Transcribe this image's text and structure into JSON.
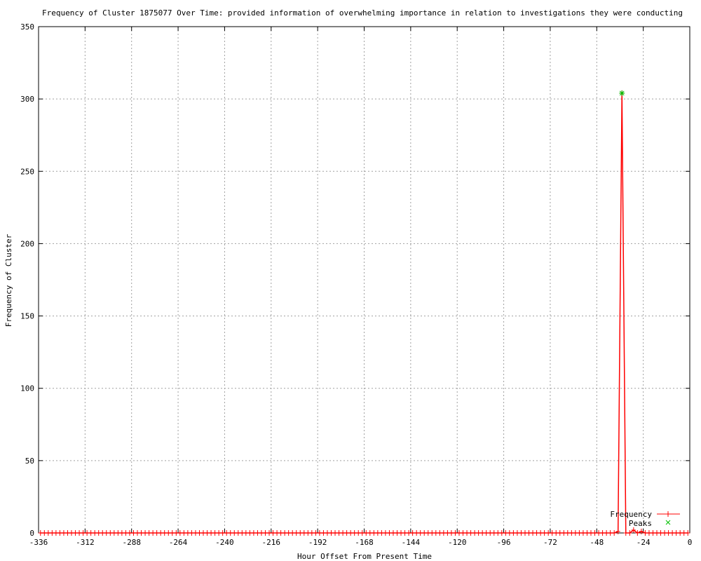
{
  "chart_data": {
    "type": "line",
    "title": "Frequency of Cluster 1875077 Over Time: provided information of overwhelming importance in relation to investigations they were conducting",
    "xlabel": "Hour Offset From Present Time",
    "ylabel": "Frequency of Cluster",
    "xlim": [
      -336,
      0
    ],
    "ylim": [
      0,
      350
    ],
    "xticks": [
      -336,
      -312,
      -288,
      -264,
      -240,
      -216,
      -192,
      -168,
      -144,
      -120,
      -96,
      -72,
      -48,
      -24,
      0
    ],
    "yticks": [
      0,
      50,
      100,
      150,
      200,
      250,
      300,
      350
    ],
    "grid": true,
    "legend_position": "bottom-right",
    "series": [
      {
        "name": "Frequency",
        "color": "#ff0000",
        "marker": "+",
        "x": [
          -335,
          -333,
          -331,
          -329,
          -327,
          -325,
          -323,
          -321,
          -319,
          -317,
          -315,
          -313,
          -311,
          -309,
          -307,
          -305,
          -303,
          -301,
          -299,
          -297,
          -295,
          -293,
          -291,
          -289,
          -287,
          -285,
          -283,
          -281,
          -279,
          -277,
          -275,
          -273,
          -271,
          -269,
          -267,
          -265,
          -263,
          -261,
          -259,
          -257,
          -255,
          -253,
          -251,
          -249,
          -247,
          -245,
          -243,
          -241,
          -239,
          -237,
          -235,
          -233,
          -231,
          -229,
          -227,
          -225,
          -223,
          -221,
          -219,
          -217,
          -215,
          -213,
          -211,
          -209,
          -207,
          -205,
          -203,
          -201,
          -199,
          -197,
          -195,
          -193,
          -191,
          -189,
          -187,
          -185,
          -183,
          -181,
          -179,
          -177,
          -175,
          -173,
          -171,
          -169,
          -167,
          -165,
          -163,
          -161,
          -159,
          -157,
          -155,
          -153,
          -151,
          -149,
          -147,
          -145,
          -143,
          -141,
          -139,
          -137,
          -135,
          -133,
          -131,
          -129,
          -127,
          -125,
          -123,
          -121,
          -119,
          -117,
          -115,
          -113,
          -111,
          -109,
          -107,
          -105,
          -103,
          -101,
          -99,
          -97,
          -95,
          -93,
          -91,
          -89,
          -87,
          -85,
          -83,
          -81,
          -79,
          -77,
          -75,
          -73,
          -71,
          -69,
          -67,
          -65,
          -63,
          -61,
          -59,
          -57,
          -55,
          -53,
          -51,
          -49,
          -47,
          -45,
          -43,
          -41,
          -39,
          -37,
          -35,
          -33,
          -31,
          -29,
          -27,
          -25,
          -23,
          -21,
          -19,
          -17,
          -15,
          -13,
          -11,
          -9,
          -7,
          -5,
          -3,
          -1
        ],
        "y": [
          0,
          0,
          0,
          0,
          0,
          0,
          0,
          0,
          0,
          0,
          0,
          0,
          0,
          0,
          0,
          0,
          0,
          0,
          0,
          0,
          0,
          0,
          0,
          0,
          0,
          0,
          0,
          0,
          0,
          0,
          0,
          0,
          0,
          0,
          0,
          0,
          0,
          0,
          0,
          0,
          0,
          0,
          0,
          0,
          0,
          0,
          0,
          0,
          0,
          0,
          0,
          0,
          0,
          0,
          0,
          0,
          0,
          0,
          0,
          0,
          0,
          0,
          0,
          0,
          0,
          0,
          0,
          0,
          0,
          0,
          0,
          0,
          0,
          0,
          0,
          0,
          0,
          0,
          0,
          0,
          0,
          0,
          0,
          0,
          0,
          0,
          0,
          0,
          0,
          0,
          0,
          0,
          0,
          0,
          0,
          0,
          0,
          0,
          0,
          0,
          0,
          0,
          0,
          0,
          0,
          0,
          0,
          0,
          0,
          0,
          0,
          0,
          0,
          0,
          0,
          0,
          0,
          0,
          0,
          0,
          0,
          0,
          0,
          0,
          0,
          0,
          0,
          0,
          0,
          0,
          0,
          0,
          0,
          0,
          0,
          0,
          0,
          0,
          0,
          0,
          0,
          0,
          0,
          0,
          0,
          0,
          0,
          0,
          0,
          1,
          304,
          0,
          0,
          2,
          0,
          1,
          0,
          0,
          0,
          0,
          0,
          0,
          0,
          0,
          0,
          0,
          0,
          0
        ]
      },
      {
        "name": "Peaks",
        "color": "#00c000",
        "marker": "x",
        "x": [
          -35
        ],
        "y": [
          304
        ]
      }
    ]
  }
}
